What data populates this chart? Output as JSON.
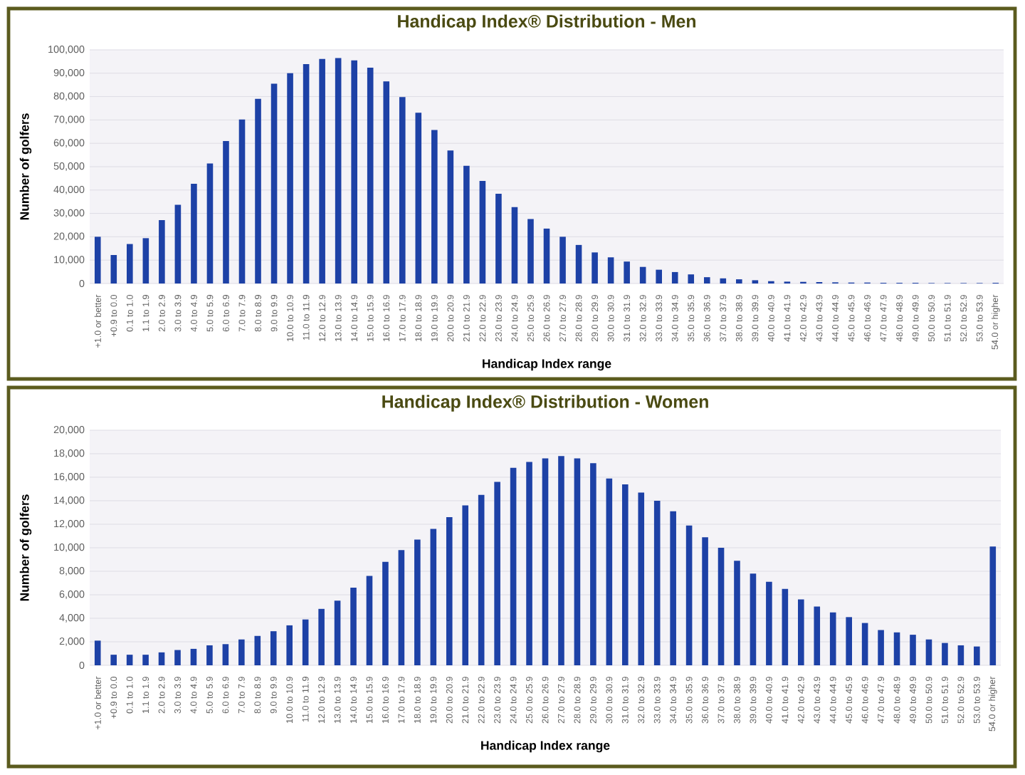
{
  "chart_data": [
    {
      "type": "bar",
      "title": "Handicap Index® Distribution - Men",
      "xlabel": "Handicap Index range",
      "ylabel": "Number of golfers",
      "categories": [
        "+1.0 or better",
        "+0.9 to 0.0",
        "0.1 to 1.0",
        "1.1 to 1.9",
        "2.0 to 2.9",
        "3.0 to 3.9",
        "4.0 to 4.9",
        "5.0 to 5.9",
        "6.0 to 6.9",
        "7.0 to 7.9",
        "8.0 to 8.9",
        "9.0 to 9.9",
        "10.0 to 10.9",
        "11.0 to 11.9",
        "12.0 to 12.9",
        "13.0 to 13.9",
        "14.0 to 14.9",
        "15.0 to 15.9",
        "16.0 to 16.9",
        "17.0 to 17.9",
        "18.0 to 18.9",
        "19.0 to 19.9",
        "20.0 to 20.9",
        "21.0 to 21.9",
        "22.0 to 22.9",
        "23.0 to 23.9",
        "24.0 to 24.9",
        "25.0 to 25.9",
        "26.0 to 26.9",
        "27.0 to 27.9",
        "28.0 to 28.9",
        "29.0 to 29.9",
        "30.0 to 30.9",
        "31.0 to 31.9",
        "32.0 to 32.9",
        "33.0 to 33.9",
        "34.0 to 34.9",
        "35.0 to 35.9",
        "36.0 to 36.9",
        "37.0 to 37.9",
        "38.0 to 38.9",
        "39.0 to 39.9",
        "40.0 to 40.9",
        "41.0 to 41.9",
        "42.0 to 42.9",
        "43.0 to 43.9",
        "44.0 to 44.9",
        "45.0 to 45.9",
        "46.0 to 46.9",
        "47.0 to 47.9",
        "48.0 to 48.9",
        "49.0 to 49.9",
        "50.0 to 50.9",
        "51.0 to 51.9",
        "52.0 to 52.9",
        "53.0 to 53.9",
        "54.0 or higher"
      ],
      "values": [
        20000,
        12200,
        16900,
        19400,
        27100,
        33700,
        42700,
        51400,
        61000,
        70200,
        79000,
        85500,
        90000,
        93900,
        96100,
        96500,
        95500,
        92400,
        86500,
        79800,
        73100,
        65700,
        56900,
        50400,
        43900,
        38400,
        32700,
        27600,
        23500,
        20000,
        16500,
        13300,
        11200,
        9400,
        7100,
        5900,
        4900,
        3900,
        2700,
        2200,
        1800,
        1400,
        1000,
        800,
        700,
        600,
        500,
        400,
        400,
        300,
        300,
        300,
        200,
        200,
        200,
        200,
        300
      ],
      "color": "#1d41a6",
      "ylim": [
        0,
        100000
      ],
      "yticks": [
        0,
        {
          "value": 10000,
          "label": "10,000"
        },
        {
          "value": 20000,
          "label": "20,000"
        },
        {
          "value": 30000,
          "label": "30,000"
        },
        {
          "value": 40000,
          "label": "40,000"
        },
        {
          "value": 50000,
          "label": "50,000"
        },
        {
          "value": 60000,
          "label": "60,000"
        },
        {
          "value": 70000,
          "label": "70,000"
        },
        {
          "value": 80000,
          "label": "80,000"
        },
        {
          "value": 90000,
          "label": "90,000"
        },
        {
          "value": 100000,
          "label": "100,000"
        }
      ],
      "grid": "y"
    },
    {
      "type": "bar",
      "title": "Handicap Index® Distribution - Women",
      "xlabel": "Handicap Index range",
      "ylabel": "Number of golfers",
      "categories": [
        "+1.0 or better",
        "+0.9 to 0.0",
        "0.1 to 1.0",
        "1.1 to 1.9",
        "2.0 to 2.9",
        "3.0 to 3.9",
        "4.0 to 4.9",
        "5.0 to 5.9",
        "6.0 to 6.9",
        "7.0 to 7.9",
        "8.0 to 8.9",
        "9.0 to 9.9",
        "10.0 to 10.9",
        "11.0 to 11.9",
        "12.0 to 12.9",
        "13.0 to 13.9",
        "14.0 to 14.9",
        "15.0 to 15.9",
        "16.0 to 16.9",
        "17.0 to 17.9",
        "18.0 to 18.9",
        "19.0 to 19.9",
        "20.0 to 20.9",
        "21.0 to 21.9",
        "22.0 to 22.9",
        "23.0 to 23.9",
        "24.0 to 24.9",
        "25.0 to 25.9",
        "26.0 to 26.9",
        "27.0 to 27.9",
        "28.0 to 28.9",
        "29.0 to 29.9",
        "30.0 to 30.9",
        "31.0 to 31.9",
        "32.0 to 32.9",
        "33.0 to 33.9",
        "34.0 to 34.9",
        "35.0 to 35.9",
        "36.0 to 36.9",
        "37.0 to 37.9",
        "38.0 to 38.9",
        "39.0 to 39.9",
        "40.0 to 40.9",
        "41.0 to 41.9",
        "42.0 to 42.9",
        "43.0 to 43.9",
        "44.0 to 44.9",
        "45.0 to 45.9",
        "46.0 to 46.9",
        "47.0 to 47.9",
        "48.0 to 48.9",
        "49.0 to 49.9",
        "50.0 to 50.9",
        "51.0 to 51.9",
        "52.0 to 52.9",
        "53.0 to 53.9",
        "54.0 or higher"
      ],
      "values": [
        2100,
        900,
        900,
        900,
        1100,
        1300,
        1400,
        1700,
        1800,
        2200,
        2500,
        2900,
        3400,
        3900,
        4800,
        5500,
        6600,
        7600,
        8800,
        9800,
        10700,
        11600,
        12600,
        13600,
        14500,
        15600,
        16800,
        17300,
        17600,
        17800,
        17600,
        17200,
        15900,
        15400,
        14700,
        14000,
        13100,
        11900,
        10900,
        10000,
        8900,
        7800,
        7100,
        6500,
        5600,
        5000,
        4500,
        4100,
        3600,
        3000,
        2800,
        2600,
        2200,
        1900,
        1700,
        1600,
        10100
      ],
      "color": "#1d41a6",
      "ylim": [
        0,
        20000
      ],
      "yticks": [
        0,
        {
          "value": 2000,
          "label": "2,000"
        },
        {
          "value": 4000,
          "label": "4,000"
        },
        {
          "value": 6000,
          "label": "6,000"
        },
        {
          "value": 8000,
          "label": "8,000"
        },
        {
          "value": 10000,
          "label": "10,000"
        },
        {
          "value": 12000,
          "label": "12,000"
        },
        {
          "value": 14000,
          "label": "14,000"
        },
        {
          "value": 16000,
          "label": "16,000"
        },
        {
          "value": 18000,
          "label": "18,000"
        },
        {
          "value": 20000,
          "label": "20,000"
        }
      ],
      "grid": "y"
    }
  ]
}
